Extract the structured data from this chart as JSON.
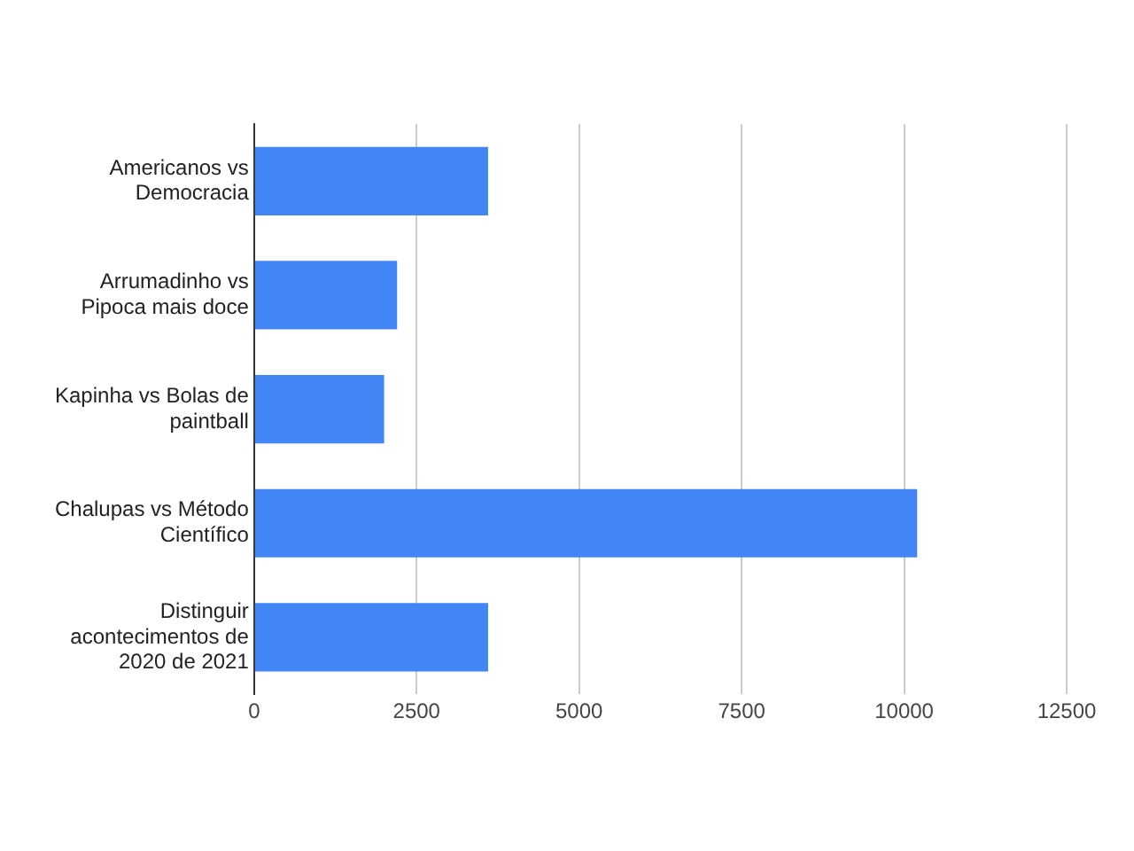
{
  "chart_data": {
    "type": "bar",
    "orientation": "horizontal",
    "categories": [
      "Americanos vs Democracia",
      "Arrumadinho vs Pipoca mais doce",
      "Kapinha vs Bolas de paintball",
      "Chalupas vs Método Científico",
      "Distinguir acontecimentos de 2020 de 2021"
    ],
    "values": [
      3600,
      2200,
      2000,
      10200,
      3600
    ],
    "color": "#4285f4",
    "xlim": [
      0,
      12500
    ],
    "xticks": [
      0,
      2500,
      5000,
      7500,
      10000,
      12500
    ],
    "grid": "x",
    "legend": false
  }
}
